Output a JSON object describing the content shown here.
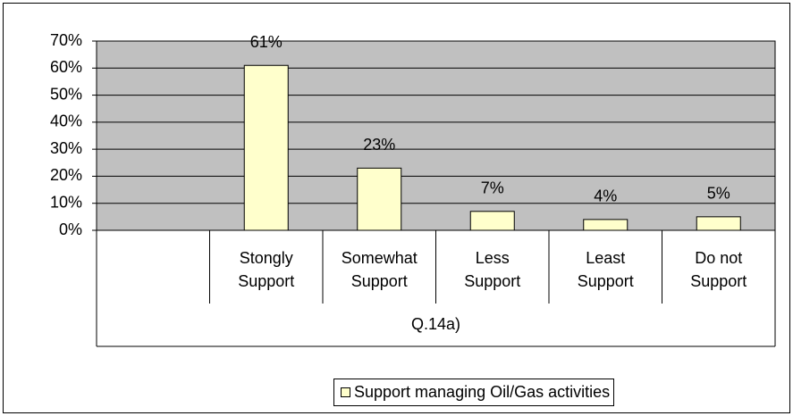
{
  "chart_data": {
    "type": "bar",
    "categories": [
      null,
      "Stongly Support",
      "Somewhat Support",
      "Less Support",
      "Least Support",
      "Do not Support"
    ],
    "x_label": "Q.14a)",
    "series": [
      {
        "name": "Support managing Oil/Gas activities",
        "color": "#ffffcc",
        "values": [
          null,
          61,
          23,
          7,
          4,
          5
        ],
        "value_labels": [
          null,
          "61%",
          "23%",
          "7%",
          "4%",
          "5%"
        ]
      }
    ],
    "ylim": [
      0,
      70
    ],
    "yticks": [
      {
        "value": 0,
        "label": "0%"
      },
      {
        "value": 10,
        "label": "10%"
      },
      {
        "value": 20,
        "label": "20%"
      },
      {
        "value": 30,
        "label": "30%"
      },
      {
        "value": 40,
        "label": "40%"
      },
      {
        "value": 50,
        "label": "50%"
      },
      {
        "value": 60,
        "label": "60%"
      },
      {
        "value": 70,
        "label": "70%"
      }
    ],
    "grid": true,
    "legend": "bottom",
    "plot_background": "#c0c0c0"
  }
}
